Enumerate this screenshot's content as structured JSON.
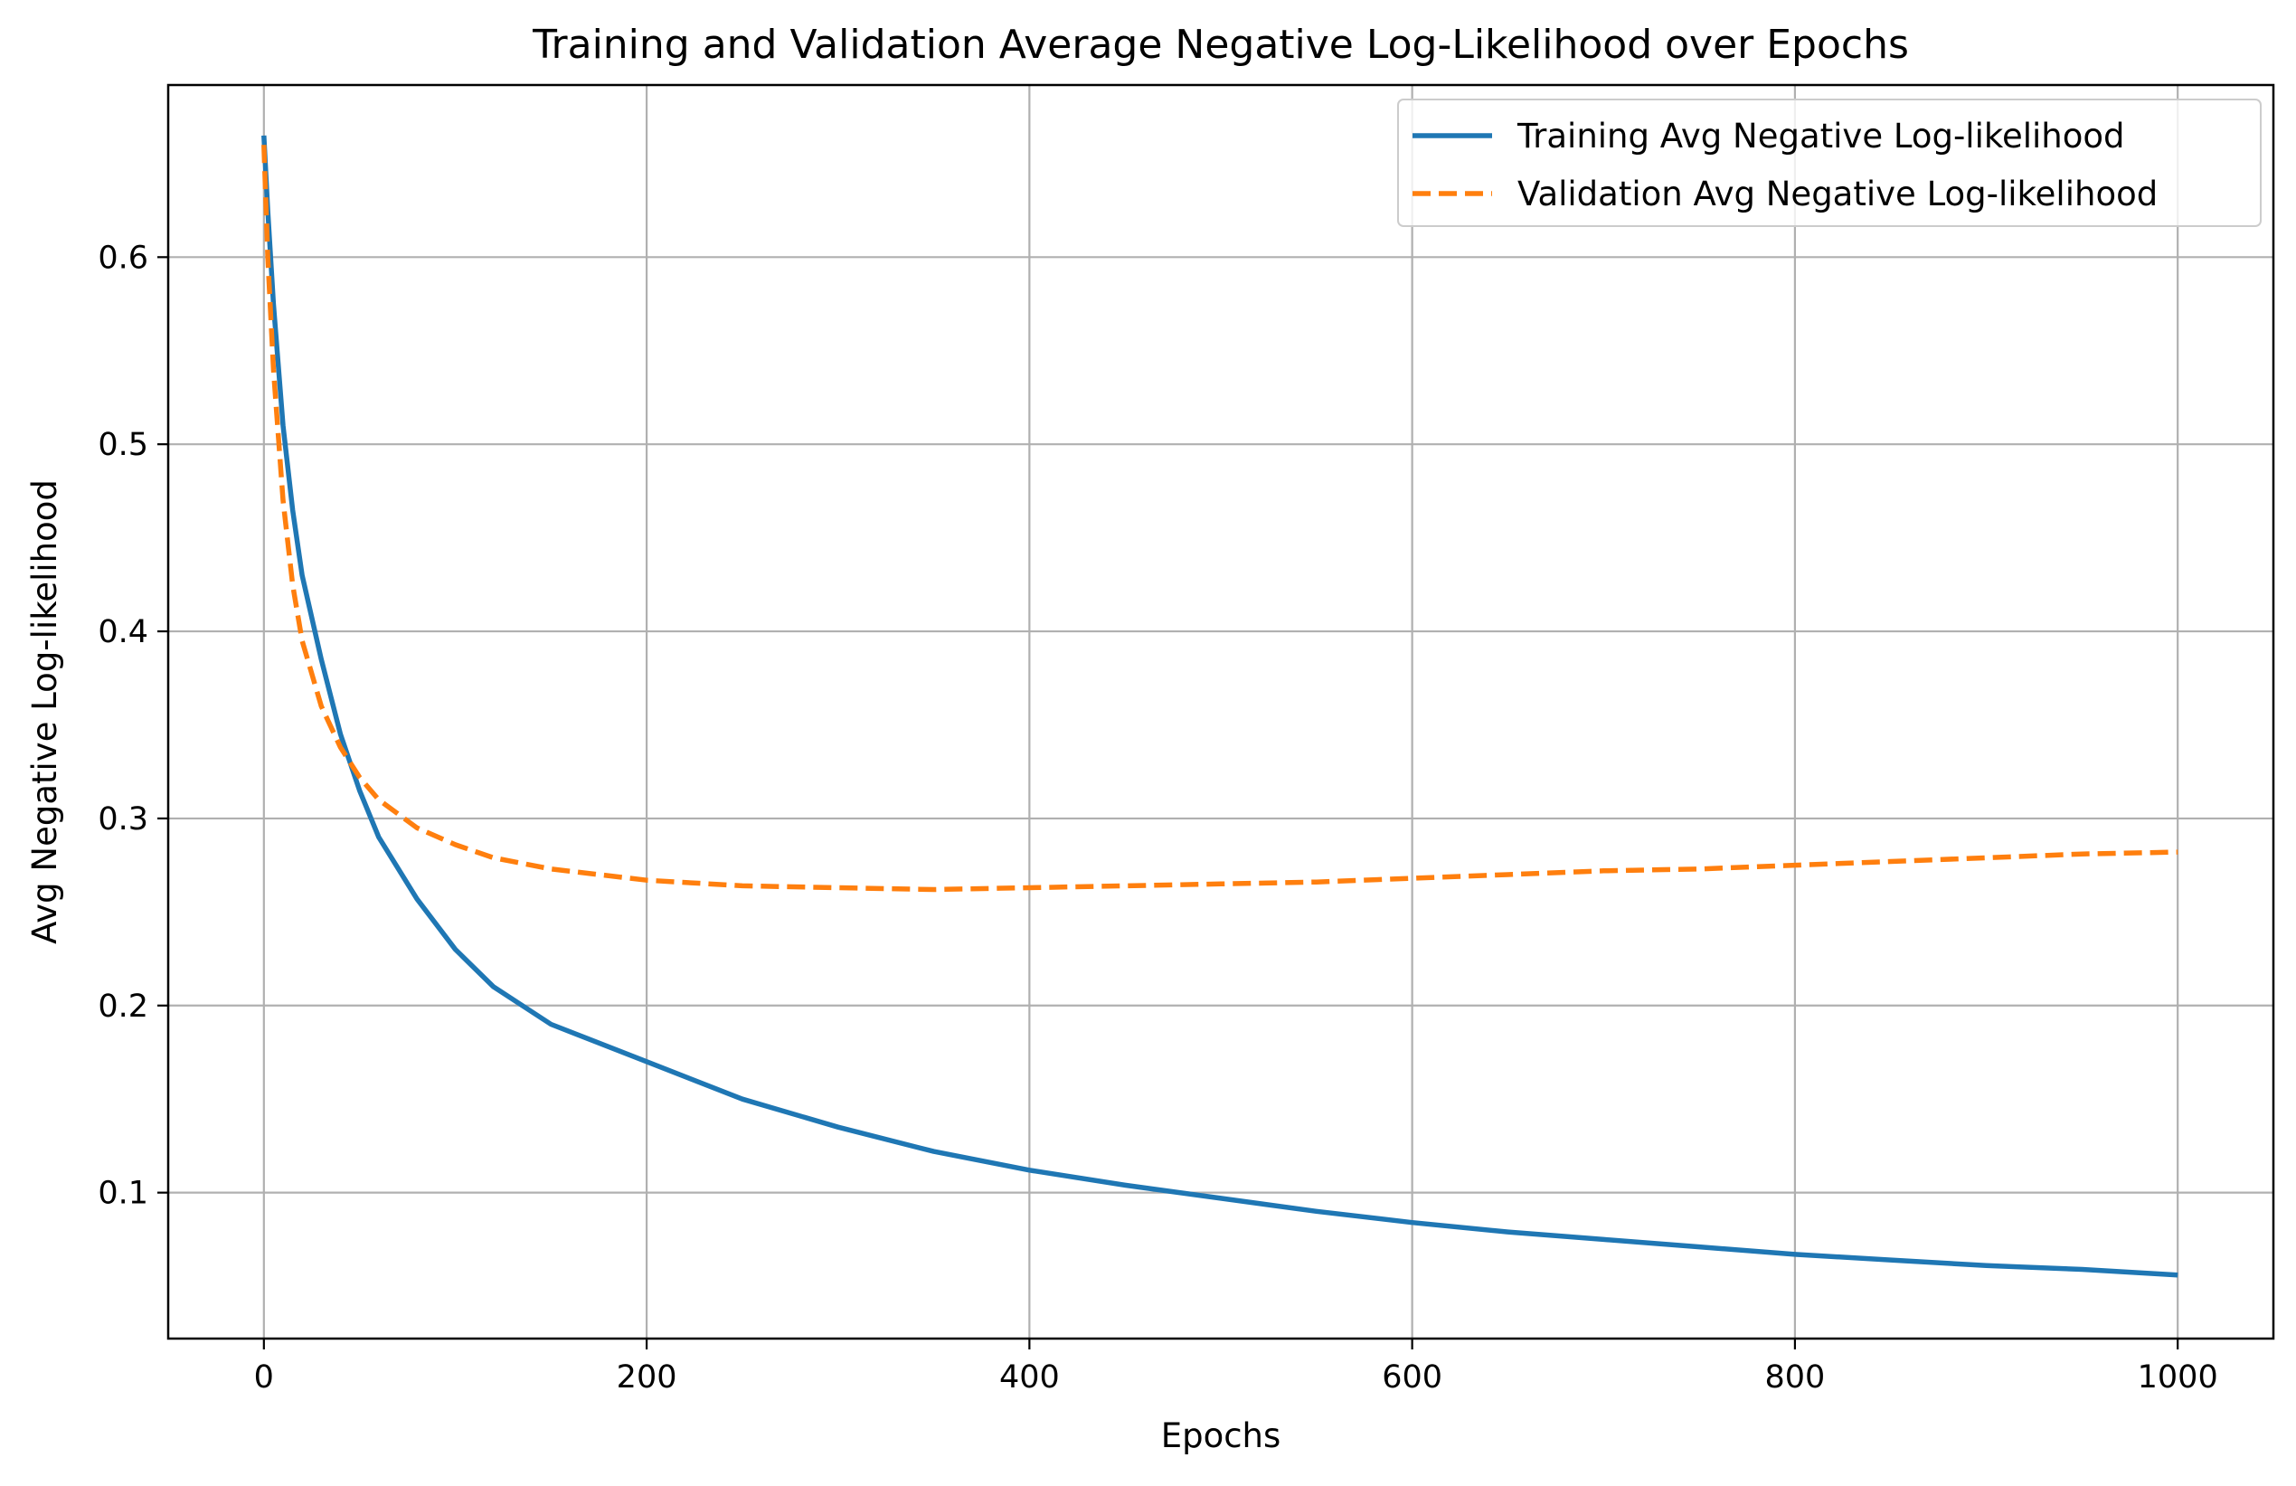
{
  "chart_data": {
    "type": "line",
    "title": "Training and Validation Average Negative Log-Likelihood over Epochs",
    "xlabel": "Epochs",
    "ylabel": "Avg Negative Log-likelihood",
    "xlim": [
      -50,
      1050
    ],
    "ylim": [
      0.022,
      0.692
    ],
    "xticks": [
      0,
      200,
      400,
      600,
      800,
      1000
    ],
    "xtick_labels": [
      "0",
      "200",
      "400",
      "600",
      "800",
      "1000"
    ],
    "yticks": [
      0.1,
      0.2,
      0.3,
      0.4,
      0.5,
      0.6
    ],
    "ytick_labels": [
      "0.1",
      "0.2",
      "0.3",
      "0.4",
      "0.5",
      "0.6"
    ],
    "grid": true,
    "legend_position": "top-right",
    "x": [
      0,
      2,
      5,
      10,
      15,
      20,
      30,
      40,
      50,
      60,
      80,
      100,
      120,
      150,
      200,
      250,
      300,
      350,
      400,
      450,
      500,
      550,
      600,
      650,
      700,
      750,
      800,
      850,
      900,
      950,
      1000
    ],
    "series": [
      {
        "name": "Training Avg Negative Log-likelihood",
        "color": "#1f77b4",
        "style": "solid",
        "values": [
          0.665,
          0.625,
          0.575,
          0.51,
          0.465,
          0.43,
          0.385,
          0.345,
          0.315,
          0.29,
          0.257,
          0.23,
          0.21,
          0.19,
          0.17,
          0.15,
          0.135,
          0.122,
          0.112,
          0.104,
          0.097,
          0.09,
          0.084,
          0.079,
          0.075,
          0.071,
          0.067,
          0.064,
          0.061,
          0.059,
          0.056
        ]
      },
      {
        "name": "Validation Avg Negative Log-likelihood",
        "color": "#ff7f0e",
        "style": "dashed",
        "values": [
          0.66,
          0.6,
          0.54,
          0.47,
          0.425,
          0.395,
          0.36,
          0.338,
          0.322,
          0.31,
          0.295,
          0.286,
          0.279,
          0.273,
          0.267,
          0.264,
          0.263,
          0.262,
          0.263,
          0.264,
          0.265,
          0.266,
          0.268,
          0.27,
          0.272,
          0.273,
          0.275,
          0.277,
          0.279,
          0.281,
          0.282
        ]
      }
    ]
  }
}
